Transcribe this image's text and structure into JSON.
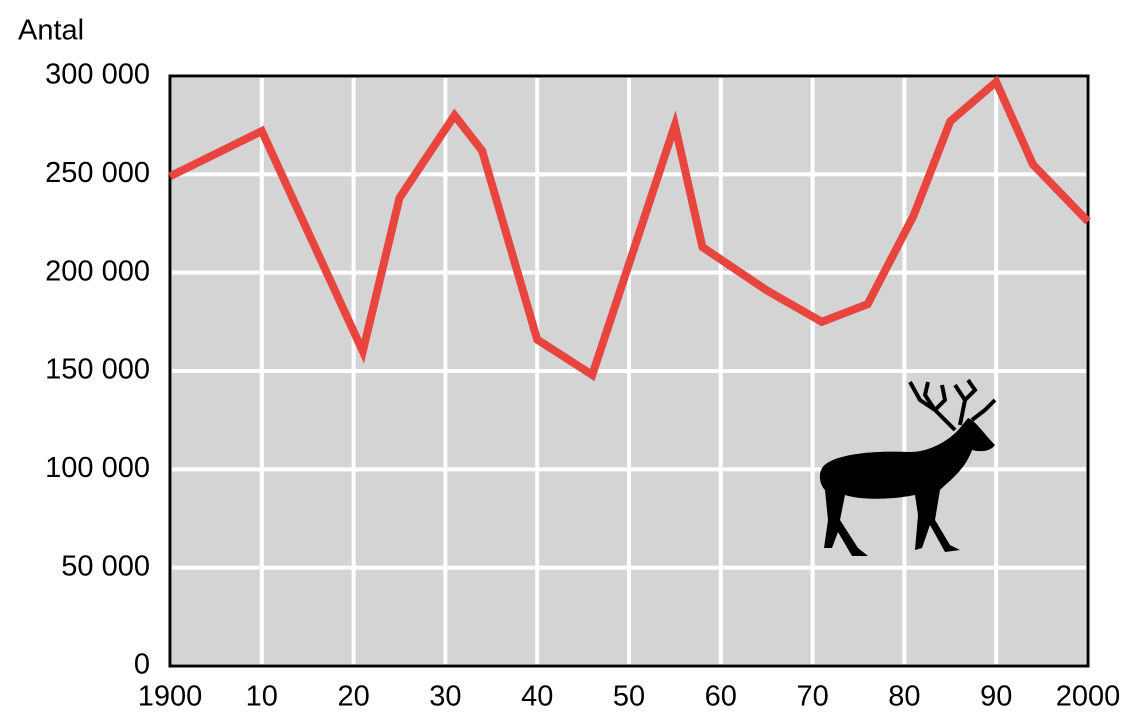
{
  "chart_data": {
    "type": "line",
    "y_label": "Antal",
    "x": [
      1900,
      1910,
      1921,
      1925,
      1931,
      1934,
      1940,
      1946,
      1955,
      1958,
      1965,
      1971,
      1976,
      1981,
      1985,
      1990,
      1994,
      2000
    ],
    "series": [
      {
        "name": "Antal",
        "color": "#e8453f",
        "values": [
          249000,
          272000,
          160000,
          238000,
          280000,
          262000,
          166000,
          148000,
          275000,
          213000,
          191000,
          175000,
          184000,
          229000,
          277000,
          297000,
          255000,
          226000
        ]
      }
    ],
    "xlim": [
      1900,
      2000
    ],
    "xticks": [
      1900,
      {
        "value": 1910,
        "label": "10"
      },
      {
        "value": 1920,
        "label": "20"
      },
      {
        "value": 1930,
        "label": "30"
      },
      {
        "value": 1940,
        "label": "40"
      },
      {
        "value": 1950,
        "label": "50"
      },
      {
        "value": 1960,
        "label": "60"
      },
      {
        "value": 1970,
        "label": "70"
      },
      {
        "value": 1980,
        "label": "80"
      },
      {
        "value": 1990,
        "label": "90"
      },
      2000
    ],
    "ylim": [
      0,
      300000
    ],
    "yticks": [
      0,
      {
        "value": 50000,
        "label": "50 000"
      },
      {
        "value": 100000,
        "label": "100 000"
      },
      {
        "value": 150000,
        "label": "150 000"
      },
      {
        "value": 200000,
        "label": "200 000"
      },
      {
        "value": 250000,
        "label": "250 000"
      },
      {
        "value": 300000,
        "label": "300 000"
      }
    ],
    "grid": true
  }
}
